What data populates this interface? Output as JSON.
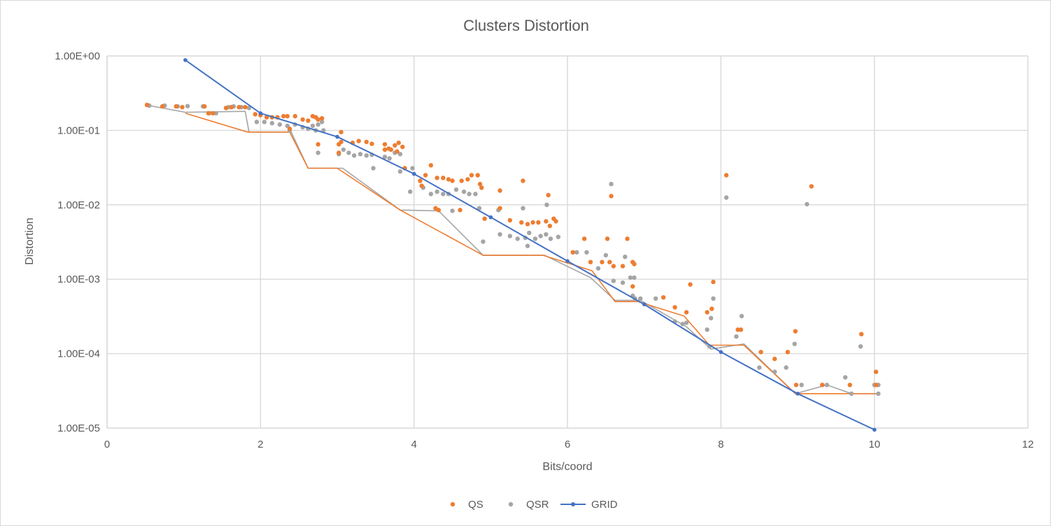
{
  "chart_data": {
    "type": "scatter",
    "title": "Clusters Distortion",
    "xlabel": "Bits/coord",
    "ylabel": "Distortion",
    "xlim": [
      0,
      12
    ],
    "ylim": [
      1e-05,
      1
    ],
    "yscale": "log",
    "x_ticks": [
      0,
      2,
      4,
      6,
      8,
      10,
      12
    ],
    "x_tick_labels": [
      "0",
      "2",
      "4",
      "6",
      "8",
      "10",
      "12"
    ],
    "y_ticks": [
      1,
      0.1,
      0.01,
      0.001,
      0.0001,
      1e-05
    ],
    "y_tick_labels": [
      "1.00E+00",
      "1.00E-01",
      "1.00E-02",
      "1.00E-03",
      "1.00E-04",
      "1.00E-05"
    ],
    "grid": true,
    "legend_position": "bottom",
    "colors": {
      "QS": "#ed7d31",
      "QSR": "#a5a5a5",
      "GRID": "#4472c4"
    },
    "series": [
      {
        "name": "QS",
        "type": "scatter",
        "points": [
          [
            0.52,
            0.22
          ],
          [
            0.72,
            0.21
          ],
          [
            0.9,
            0.21
          ],
          [
            0.98,
            0.205
          ],
          [
            1.27,
            0.21
          ],
          [
            1.32,
            0.17
          ],
          [
            1.38,
            0.17
          ],
          [
            1.55,
            0.2
          ],
          [
            1.62,
            0.205
          ],
          [
            1.72,
            0.205
          ],
          [
            1.8,
            0.205
          ],
          [
            1.93,
            0.165
          ],
          [
            2.0,
            0.16
          ],
          [
            2.08,
            0.15
          ],
          [
            2.15,
            0.15
          ],
          [
            2.22,
            0.15
          ],
          [
            2.3,
            0.155
          ],
          [
            2.35,
            0.155
          ],
          [
            2.45,
            0.155
          ],
          [
            2.55,
            0.14
          ],
          [
            2.62,
            0.135
          ],
          [
            2.68,
            0.155
          ],
          [
            2.72,
            0.15
          ],
          [
            2.75,
            0.14
          ],
          [
            2.8,
            0.145
          ],
          [
            2.38,
            0.105
          ],
          [
            2.75,
            0.065
          ],
          [
            3.05,
            0.095
          ],
          [
            3.02,
            0.065
          ],
          [
            3.05,
            0.07
          ],
          [
            3.2,
            0.068
          ],
          [
            3.28,
            0.072
          ],
          [
            3.38,
            0.07
          ],
          [
            3.45,
            0.066
          ],
          [
            3.62,
            0.065
          ],
          [
            3.67,
            0.057
          ],
          [
            3.75,
            0.063
          ],
          [
            3.8,
            0.068
          ],
          [
            3.85,
            0.06
          ],
          [
            3.02,
            0.05
          ],
          [
            3.62,
            0.055
          ],
          [
            3.7,
            0.055
          ],
          [
            3.78,
            0.052
          ],
          [
            4.22,
            0.034
          ],
          [
            4.15,
            0.025
          ],
          [
            4.3,
            0.023
          ],
          [
            4.38,
            0.023
          ],
          [
            4.45,
            0.022
          ],
          [
            4.5,
            0.021
          ],
          [
            4.62,
            0.021
          ],
          [
            4.7,
            0.022
          ],
          [
            4.75,
            0.025
          ],
          [
            4.83,
            0.025
          ],
          [
            4.86,
            0.019
          ],
          [
            4.88,
            0.017
          ],
          [
            3.88,
            0.031
          ],
          [
            4.08,
            0.021
          ],
          [
            4.1,
            0.018
          ],
          [
            4.28,
            0.009
          ],
          [
            4.32,
            0.0085
          ],
          [
            4.6,
            0.0085
          ],
          [
            5.12,
            0.0155
          ],
          [
            5.12,
            0.009
          ],
          [
            5.42,
            0.021
          ],
          [
            5.75,
            0.0135
          ],
          [
            5.82,
            0.0065
          ],
          [
            4.92,
            0.0065
          ],
          [
            5.25,
            0.0062
          ],
          [
            5.4,
            0.0058
          ],
          [
            5.48,
            0.0055
          ],
          [
            5.55,
            0.0058
          ],
          [
            5.62,
            0.0058
          ],
          [
            5.72,
            0.006
          ],
          [
            5.77,
            0.0052
          ],
          [
            5.85,
            0.006
          ],
          [
            6.22,
            0.0035
          ],
          [
            6.07,
            0.0023
          ],
          [
            6.3,
            0.0017
          ],
          [
            6.45,
            0.0017
          ],
          [
            6.52,
            0.0035
          ],
          [
            6.55,
            0.0017
          ],
          [
            6.6,
            0.0015
          ],
          [
            6.72,
            0.0015
          ],
          [
            6.78,
            0.0035
          ],
          [
            6.85,
            0.0017
          ],
          [
            6.87,
            0.0016
          ],
          [
            6.57,
            0.0131
          ],
          [
            6.85,
            0.0008
          ],
          [
            7.25,
            0.00057
          ],
          [
            7.4,
            0.00042
          ],
          [
            7.55,
            0.00036
          ],
          [
            7.6,
            0.00085
          ],
          [
            7.82,
            0.00036
          ],
          [
            7.88,
            0.0004
          ],
          [
            7.9,
            0.00092
          ],
          [
            8.22,
            0.00021
          ],
          [
            8.26,
            0.00021
          ],
          [
            8.07,
            0.025
          ],
          [
            8.52,
            0.000105
          ],
          [
            8.7,
            8.5e-05
          ],
          [
            8.87,
            0.000105
          ],
          [
            8.97,
            0.0002
          ],
          [
            8.98,
            3.8e-05
          ],
          [
            9.18,
            0.0177
          ],
          [
            9.32,
            3.8e-05
          ],
          [
            9.68,
            3.8e-05
          ],
          [
            9.83,
            0.000183
          ],
          [
            10.02,
            5.7e-05
          ],
          [
            10.02,
            3.8e-05
          ]
        ]
      },
      {
        "name": "QSR",
        "type": "scatter",
        "points": [
          [
            0.55,
            0.215
          ],
          [
            0.75,
            0.215
          ],
          [
            0.92,
            0.21
          ],
          [
            1.05,
            0.212
          ],
          [
            1.25,
            0.21
          ],
          [
            1.33,
            0.17
          ],
          [
            1.42,
            0.17
          ],
          [
            1.58,
            0.205
          ],
          [
            1.65,
            0.21
          ],
          [
            1.75,
            0.205
          ],
          [
            1.85,
            0.2
          ],
          [
            1.95,
            0.13
          ],
          [
            2.05,
            0.13
          ],
          [
            2.15,
            0.125
          ],
          [
            2.25,
            0.12
          ],
          [
            2.35,
            0.115
          ],
          [
            2.45,
            0.12
          ],
          [
            2.55,
            0.11
          ],
          [
            2.62,
            0.105
          ],
          [
            2.68,
            0.115
          ],
          [
            2.75,
            0.12
          ],
          [
            2.8,
            0.13
          ],
          [
            2.72,
            0.1
          ],
          [
            2.82,
            0.1
          ],
          [
            2.75,
            0.05
          ],
          [
            2.38,
            0.1
          ],
          [
            3.02,
            0.048
          ],
          [
            3.08,
            0.055
          ],
          [
            3.15,
            0.05
          ],
          [
            3.22,
            0.046
          ],
          [
            3.3,
            0.048
          ],
          [
            3.38,
            0.046
          ],
          [
            3.45,
            0.047
          ],
          [
            3.62,
            0.044
          ],
          [
            3.68,
            0.042
          ],
          [
            3.75,
            0.05
          ],
          [
            3.82,
            0.048
          ],
          [
            3.47,
            0.031
          ],
          [
            3.82,
            0.028
          ],
          [
            3.98,
            0.031
          ],
          [
            3.95,
            0.015
          ],
          [
            4.12,
            0.017
          ],
          [
            4.22,
            0.014
          ],
          [
            4.3,
            0.015
          ],
          [
            4.38,
            0.014
          ],
          [
            4.45,
            0.014
          ],
          [
            4.55,
            0.016
          ],
          [
            4.65,
            0.015
          ],
          [
            4.72,
            0.014
          ],
          [
            4.8,
            0.014
          ],
          [
            4.88,
            0.017
          ],
          [
            4.5,
            0.0083
          ],
          [
            4.9,
            0.0032
          ],
          [
            4.85,
            0.009
          ],
          [
            5.1,
            0.0085
          ],
          [
            5.12,
            0.004
          ],
          [
            5.25,
            0.0038
          ],
          [
            5.35,
            0.0035
          ],
          [
            5.45,
            0.0036
          ],
          [
            5.5,
            0.0042
          ],
          [
            5.58,
            0.0035
          ],
          [
            5.65,
            0.0038
          ],
          [
            5.72,
            0.004
          ],
          [
            5.78,
            0.0035
          ],
          [
            5.88,
            0.0037
          ],
          [
            5.48,
            0.0028
          ],
          [
            5.42,
            0.009
          ],
          [
            5.73,
            0.01
          ],
          [
            6.12,
            0.0023
          ],
          [
            6.25,
            0.0023
          ],
          [
            6.4,
            0.0014
          ],
          [
            6.5,
            0.0021
          ],
          [
            6.57,
            0.019
          ],
          [
            6.6,
            0.00095
          ],
          [
            6.72,
            0.0009
          ],
          [
            6.75,
            0.002
          ],
          [
            6.82,
            0.00105
          ],
          [
            6.87,
            0.00105
          ],
          [
            6.85,
            0.0006
          ],
          [
            6.88,
            0.00055
          ],
          [
            6.95,
            0.00055
          ],
          [
            7.15,
            0.00055
          ],
          [
            7.4,
            0.00027
          ],
          [
            7.5,
            0.00025
          ],
          [
            7.55,
            0.00026
          ],
          [
            7.82,
            0.00021
          ],
          [
            7.87,
            0.0003
          ],
          [
            7.9,
            0.00055
          ],
          [
            7.85,
            0.000125
          ],
          [
            8.2,
            0.00017
          ],
          [
            8.27,
            0.00032
          ],
          [
            8.07,
            0.0125
          ],
          [
            8.5,
            6.5e-05
          ],
          [
            8.7,
            5.7e-05
          ],
          [
            8.85,
            6.5e-05
          ],
          [
            8.96,
            0.000135
          ],
          [
            9.05,
            3.8e-05
          ],
          [
            9.12,
            0.0102
          ],
          [
            9.38,
            3.8e-05
          ],
          [
            9.62,
            4.8e-05
          ],
          [
            9.7,
            2.9e-05
          ],
          [
            9.82,
            0.000125
          ],
          [
            10.0,
            3.8e-05
          ],
          [
            10.05,
            3.8e-05
          ],
          [
            10.05,
            2.9e-05
          ]
        ]
      },
      {
        "name": "QS-frontier",
        "type": "line",
        "legend": false,
        "points": [
          [
            1.02,
            0.17
          ],
          [
            1.83,
            0.095
          ],
          [
            2.38,
            0.095
          ],
          [
            2.62,
            0.031
          ],
          [
            3.0,
            0.031
          ],
          [
            3.82,
            0.0085
          ],
          [
            4.9,
            0.0021
          ],
          [
            5.68,
            0.0021
          ],
          [
            6.32,
            0.0013
          ],
          [
            6.62,
            0.0005
          ],
          [
            6.92,
            0.0005
          ],
          [
            7.52,
            0.00032
          ],
          [
            7.85,
            0.00013
          ],
          [
            8.3,
            0.00013
          ],
          [
            8.97,
            2.9e-05
          ],
          [
            9.08,
            2.9e-05
          ],
          [
            10.03,
            2.9e-05
          ]
        ]
      },
      {
        "name": "QSR-frontier",
        "type": "line",
        "legend": false,
        "points": [
          [
            0.55,
            0.215
          ],
          [
            1.02,
            0.175
          ],
          [
            1.8,
            0.18
          ],
          [
            1.85,
            0.095
          ],
          [
            2.4,
            0.095
          ],
          [
            2.62,
            0.031
          ],
          [
            3.07,
            0.031
          ],
          [
            3.82,
            0.0085
          ],
          [
            4.32,
            0.0083
          ],
          [
            4.9,
            0.0021
          ],
          [
            5.7,
            0.0021
          ],
          [
            6.3,
            0.00105
          ],
          [
            6.62,
            0.00052
          ],
          [
            6.95,
            0.00052
          ],
          [
            7.55,
            0.00023
          ],
          [
            7.87,
            0.000115
          ],
          [
            8.3,
            0.000135
          ],
          [
            8.97,
            2.9e-05
          ],
          [
            9.38,
            3.8e-05
          ],
          [
            9.7,
            2.9e-05
          ],
          [
            10.05,
            2.9e-05
          ]
        ]
      },
      {
        "name": "GRID",
        "type": "line-markers",
        "points": [
          [
            1.02,
            0.88
          ],
          [
            2.0,
            0.17
          ],
          [
            3.0,
            0.082
          ],
          [
            4.0,
            0.026
          ],
          [
            5.0,
            0.0068
          ],
          [
            6.0,
            0.00175
          ],
          [
            7.0,
            0.00046
          ],
          [
            8.0,
            0.000105
          ],
          [
            9.0,
            2.9e-05
          ],
          [
            10.0,
            9.5e-06
          ]
        ]
      }
    ],
    "legend": [
      "QS",
      "QSR",
      "GRID"
    ]
  }
}
